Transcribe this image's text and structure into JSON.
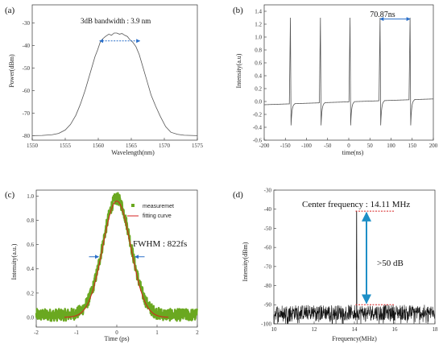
{
  "chart_data": [
    {
      "id": "a",
      "panel_label": "(a)",
      "type": "line",
      "xlabel": "Wavelength(nm)",
      "ylabel": "Power(dBm)",
      "xlim": [
        1550,
        1575
      ],
      "ylim": [
        -82,
        -22
      ],
      "xticks": [
        1550,
        1555,
        1560,
        1565,
        1570,
        1575
      ],
      "yticks": [
        -80,
        -70,
        -60,
        -50,
        -40,
        -30
      ],
      "series": [
        {
          "color": "#555555",
          "x": [
            1550,
            1551.5,
            1553,
            1554,
            1555,
            1555.8,
            1556.6,
            1557.3,
            1558,
            1558.6,
            1559.1,
            1559.5,
            1559.9,
            1560.3,
            1560.7,
            1561.1,
            1561.6,
            1562.0,
            1562.4,
            1562.8,
            1563.2,
            1563.6,
            1564.0,
            1564.4,
            1564.8,
            1565.2,
            1565.7,
            1566.2,
            1566.8,
            1567.4,
            1568,
            1568.7,
            1569.4,
            1570.2,
            1571,
            1572,
            1573,
            1574,
            1575
          ],
          "y": [
            -80,
            -79.9,
            -79.6,
            -79.0,
            -77.5,
            -75,
            -71,
            -66,
            -60,
            -54,
            -49,
            -45,
            -42,
            -38.5,
            -37,
            -36,
            -35,
            -35.5,
            -34.5,
            -34.5,
            -35,
            -34.7,
            -35.5,
            -36,
            -37.5,
            -38.5,
            -40.5,
            -44,
            -50,
            -56,
            -62,
            -67,
            -71.5,
            -76,
            -78.5,
            -79.4,
            -79.8,
            -79.9,
            -80
          ]
        }
      ],
      "annotations": {
        "text": "3dB bandwidth : 3.9 nm",
        "bandwidth_bracket": {
          "x1": 1560.2,
          "x2": 1566.3,
          "y": -38
        }
      }
    },
    {
      "id": "b",
      "panel_label": "(b)",
      "type": "line",
      "xlabel": "time(ns)",
      "ylabel": "Intensity(a.u)",
      "xlim": [
        -200,
        200
      ],
      "ylim": [
        -0.6,
        1.5
      ],
      "xticks": [
        -200,
        -150,
        -100,
        -50,
        0,
        50,
        100,
        150,
        200
      ],
      "yticks": [
        -0.6,
        -0.4,
        -0.2,
        0.0,
        0.2,
        0.4,
        0.6,
        0.8,
        1.0,
        1.2,
        1.4
      ],
      "pulse_times": [
        -138,
        -67,
        3,
        74,
        145
      ],
      "pulse_peak": 1.3,
      "pulse_dip": -0.37,
      "baseline_start": -0.05,
      "baseline_end": 0.04,
      "series_color": "#555555",
      "annotations": {
        "text": "70.87ns",
        "period_bracket": {
          "x1": 74,
          "x2": 145,
          "y": 1.28
        }
      }
    },
    {
      "id": "c",
      "panel_label": "(c)",
      "type": "scatter",
      "xlabel": "Time (ps)",
      "ylabel": "Intensity(a.u.)",
      "xlim": [
        -2,
        2
      ],
      "ylim": [
        -0.08,
        1.05
      ],
      "xticks": [
        -2,
        -1,
        0,
        1,
        2
      ],
      "yticks": [
        0.0,
        0.2,
        0.4,
        0.6,
        0.8,
        1.0
      ],
      "measured_color": "#6aa820",
      "fit_color": "#d62020",
      "fit_center": 0.0,
      "fit_peak": 0.96,
      "fit_fwhm": 0.82,
      "noise_level": 0.05,
      "legend": [
        "measuremet",
        "fitting curve"
      ],
      "annotations": {
        "text": "FWHM : 822fs",
        "fwhm_markers": {
          "x1": -0.41,
          "x2": 0.41,
          "y": 0.5
        }
      }
    },
    {
      "id": "d",
      "panel_label": "(d)",
      "type": "line",
      "xlabel": "Frequency(MHz)",
      "ylabel": "Intensity(dBm)",
      "xlim": [
        10,
        18
      ],
      "ylim": [
        -100,
        -30
      ],
      "xticks": [
        10,
        12,
        14,
        16,
        18
      ],
      "yticks": [
        -100,
        -90,
        -80,
        -70,
        -60,
        -50,
        -40,
        -30
      ],
      "peak_x": 14.11,
      "peak_y": -41,
      "noise_floor": -94,
      "series_color": "#111111",
      "annotations": {
        "text_center": "Center frequency : 14.11 MHz",
        "text_snr": ">50 dB",
        "top_line_y": -41,
        "bottom_line_y": -90,
        "arrow_x": 14.6
      }
    }
  ]
}
